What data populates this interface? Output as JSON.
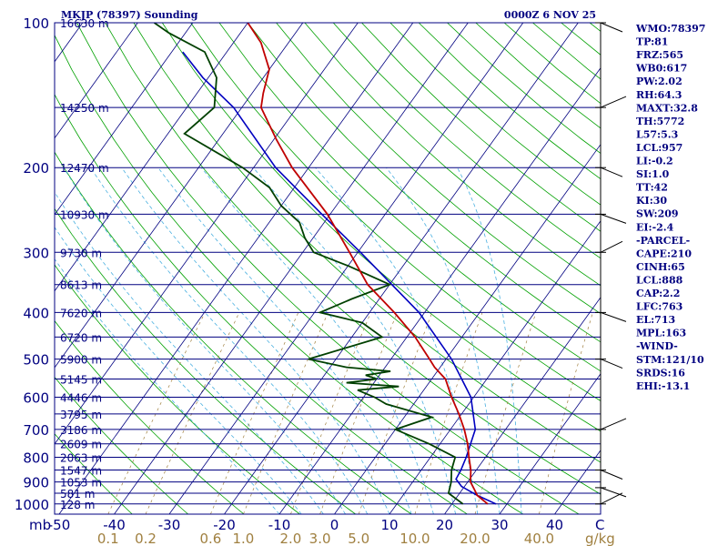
{
  "colors": {
    "frame": "#000080",
    "isotherm": "#000080",
    "isobar": "#000080",
    "dry_adiabat": "#00a000",
    "moist_adiabat": "#4ab0e0",
    "mixing_ratio": "#a08040",
    "temperature": "#c00000",
    "dewpoint": "#004000",
    "parcel": "#0000c0",
    "wind": "#000000"
  },
  "chart_data": {
    "type": "skew-t",
    "title": "MKJP (78397) Sounding",
    "datetime": "0000Z  6 NOV 25",
    "pressure_unit_label": "mb",
    "temp_unit_label": "C",
    "mixing_unit_label": "g/kg",
    "pressure_levels": [
      100,
      200,
      300,
      400,
      500,
      600,
      700,
      800,
      900,
      1000
    ],
    "height_labels": [
      {
        "p": 100,
        "label": "16630 m"
      },
      {
        "p": 150,
        "label": "14250 m"
      },
      {
        "p": 200,
        "label": "12470 m"
      },
      {
        "p": 250,
        "label": "10930 m"
      },
      {
        "p": 300,
        "label": "9730 m"
      },
      {
        "p": 350,
        "label": "8613 m"
      },
      {
        "p": 400,
        "label": "7620 m"
      },
      {
        "p": 450,
        "label": "6720 m"
      },
      {
        "p": 500,
        "label": "5900 m"
      },
      {
        "p": 550,
        "label": "5145 m"
      },
      {
        "p": 600,
        "label": "4446 m"
      },
      {
        "p": 650,
        "label": "3795 m"
      },
      {
        "p": 700,
        "label": "3186 m"
      },
      {
        "p": 750,
        "label": "2609 m"
      },
      {
        "p": 800,
        "label": "2063 m"
      },
      {
        "p": 850,
        "label": "1547 m"
      },
      {
        "p": 900,
        "label": "1053 m"
      },
      {
        "p": 950,
        "label": "581 m"
      },
      {
        "p": 1000,
        "label": "128 m"
      }
    ],
    "temp_ticks": [
      -50,
      -40,
      -30,
      -20,
      -10,
      0,
      10,
      20,
      30,
      40
    ],
    "mixing_ratio_ticks": [
      {
        "label": "0.1",
        "value": 0.1
      },
      {
        "label": "0.2",
        "value": 0.2
      },
      {
        "label": "0.6",
        "value": 0.6
      },
      {
        "label": "1.0",
        "value": 1.0
      },
      {
        "label": "2.0",
        "value": 2.0
      },
      {
        "label": "3.0",
        "value": 3.0
      },
      {
        "label": "5.0",
        "value": 5.0
      },
      {
        "label": "10.0",
        "value": 10.0
      },
      {
        "label": "20.0",
        "value": 20.0
      },
      {
        "label": "40.0",
        "value": 40.0
      }
    ],
    "temperature_profile": [
      [
        1000,
        26.5
      ],
      [
        960,
        23.5
      ],
      [
        925,
        21.8
      ],
      [
        900,
        20.5
      ],
      [
        850,
        19.0
      ],
      [
        800,
        17.0
      ],
      [
        750,
        15.0
      ],
      [
        700,
        12.5
      ],
      [
        650,
        9.5
      ],
      [
        600,
        6.0
      ],
      [
        550,
        2.5
      ],
      [
        520,
        -1.0
      ],
      [
        500,
        -3.0
      ],
      [
        450,
        -8.5
      ],
      [
        400,
        -15.5
      ],
      [
        350,
        -24.0
      ],
      [
        300,
        -31.5
      ],
      [
        250,
        -40.5
      ],
      [
        200,
        -53.0
      ],
      [
        175,
        -59.5
      ],
      [
        150,
        -66.5
      ],
      [
        140,
        -68.0
      ],
      [
        125,
        -70.0
      ],
      [
        110,
        -75.0
      ],
      [
        100,
        -80.0
      ]
    ],
    "dewpoint_profile": [
      [
        1000,
        22.0
      ],
      [
        950,
        18.0
      ],
      [
        900,
        17.0
      ],
      [
        850,
        15.5
      ],
      [
        800,
        14.5
      ],
      [
        750,
        8.0
      ],
      [
        700,
        0.0
      ],
      [
        660,
        5.0
      ],
      [
        620,
        -5.0
      ],
      [
        600,
        -8.0
      ],
      [
        580,
        -12.0
      ],
      [
        570,
        -5.0
      ],
      [
        560,
        -15.0
      ],
      [
        550,
        -10.0
      ],
      [
        540,
        -12.5
      ],
      [
        530,
        -8.5
      ],
      [
        520,
        -17.0
      ],
      [
        500,
        -25.0
      ],
      [
        450,
        -14.5
      ],
      [
        420,
        -20.0
      ],
      [
        400,
        -29.0
      ],
      [
        375,
        -25.0
      ],
      [
        350,
        -20.0
      ],
      [
        320,
        -30.0
      ],
      [
        300,
        -38.0
      ],
      [
        280,
        -41.5
      ],
      [
        260,
        -44.5
      ],
      [
        240,
        -50.0
      ],
      [
        220,
        -54.5
      ],
      [
        200,
        -62.0
      ],
      [
        170,
        -77.0
      ],
      [
        150,
        -75.0
      ],
      [
        130,
        -78.5
      ],
      [
        115,
        -84.0
      ],
      [
        105,
        -93.0
      ],
      [
        100,
        -97.0
      ]
    ],
    "parcel_profile": [
      [
        1000,
        28.0
      ],
      [
        960,
        23.5
      ],
      [
        920,
        19.5
      ],
      [
        888,
        17.5
      ],
      [
        850,
        17.2
      ],
      [
        800,
        16.5
      ],
      [
        700,
        14.5
      ],
      [
        600,
        9.5
      ],
      [
        500,
        1.0
      ],
      [
        400,
        -11.0
      ],
      [
        300,
        -29.5
      ],
      [
        250,
        -41.5
      ],
      [
        200,
        -56.0
      ],
      [
        150,
        -71.5
      ],
      [
        130,
        -81.0
      ],
      [
        115,
        -88.0
      ]
    ],
    "wind_levels": [
      1000,
      925,
      850,
      700,
      500,
      400,
      300,
      250,
      200,
      150,
      100
    ],
    "indices": [
      "WMO:78397",
      "TP:81",
      "FRZ:565",
      "WB0:617",
      "PW:2.02",
      "RH:64.3",
      "MAXT:32.8",
      "TH:5772",
      "L57:5.3",
      "LCL:957",
      "LI:-0.2",
      "SI:1.0",
      "TT:42",
      "KI:30",
      "SW:209",
      "EI:-2.4",
      "-PARCEL-",
      "CAPE:210",
      "CINH:65",
      "LCL:888",
      "CAP:2.2",
      "LFC:763",
      "EL:713",
      "MPL:163",
      "-WIND-",
      "STM:121/10",
      "SRDS:16",
      "EHI:-13.1"
    ]
  }
}
